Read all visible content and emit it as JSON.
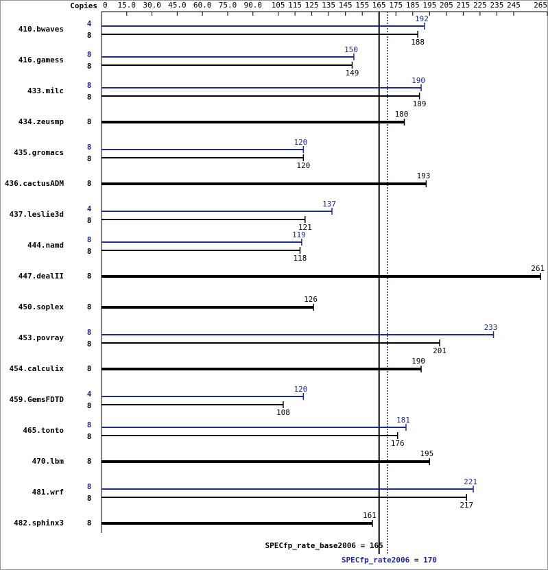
{
  "chart_data": {
    "type": "bar",
    "copies_label": "Copies",
    "categories": [
      "410.bwaves",
      "416.gamess",
      "433.milc",
      "434.zeusmp",
      "435.gromacs",
      "436.cactusADM",
      "437.leslie3d",
      "444.namd",
      "447.dealII",
      "450.soplex",
      "453.povray",
      "454.calculix",
      "459.GemsFDTD",
      "465.tonto",
      "470.lbm",
      "481.wrf",
      "482.sphinx3"
    ],
    "series": [
      {
        "color": "#000000",
        "copies": [
          8,
          8,
          8,
          8,
          8,
          8,
          8,
          8,
          8,
          8,
          8,
          8,
          8,
          8,
          8,
          8,
          8
        ],
        "values": [
          188,
          149,
          189,
          180,
          120,
          193,
          121,
          118,
          261,
          126,
          201,
          190,
          108,
          176,
          195,
          217,
          161
        ]
      },
      {
        "color": "#1f2a8f",
        "copies": [
          4,
          8,
          8,
          null,
          8,
          null,
          4,
          8,
          null,
          null,
          8,
          null,
          4,
          8,
          null,
          8,
          null
        ],
        "values": [
          192,
          150,
          190,
          null,
          120,
          null,
          137,
          119,
          null,
          null,
          233,
          null,
          120,
          181,
          null,
          221,
          null
        ]
      }
    ],
    "xlim": [
      0,
      265
    ],
    "xticks": [
      0,
      {
        "value": 15,
        "label": "15.0"
      },
      {
        "value": 30,
        "label": "30.0"
      },
      {
        "value": 45,
        "label": "45.0"
      },
      {
        "value": 60,
        "label": "60.0"
      },
      {
        "value": 75,
        "label": "75.0"
      },
      {
        "value": 90,
        "label": "90.0"
      },
      105,
      115,
      125,
      135,
      145,
      155,
      165,
      175,
      185,
      195,
      205,
      215,
      225,
      235,
      245,
      265
    ],
    "reference_lines": [
      {
        "label": "SPECfp_rate_base2006 = 165",
        "value": 165,
        "color": "#000000",
        "dashed": false
      },
      {
        "label": "SPECfp_rate2006 = 170",
        "value": 170,
        "color": "#1f2a8f",
        "dashed": true
      }
    ]
  }
}
